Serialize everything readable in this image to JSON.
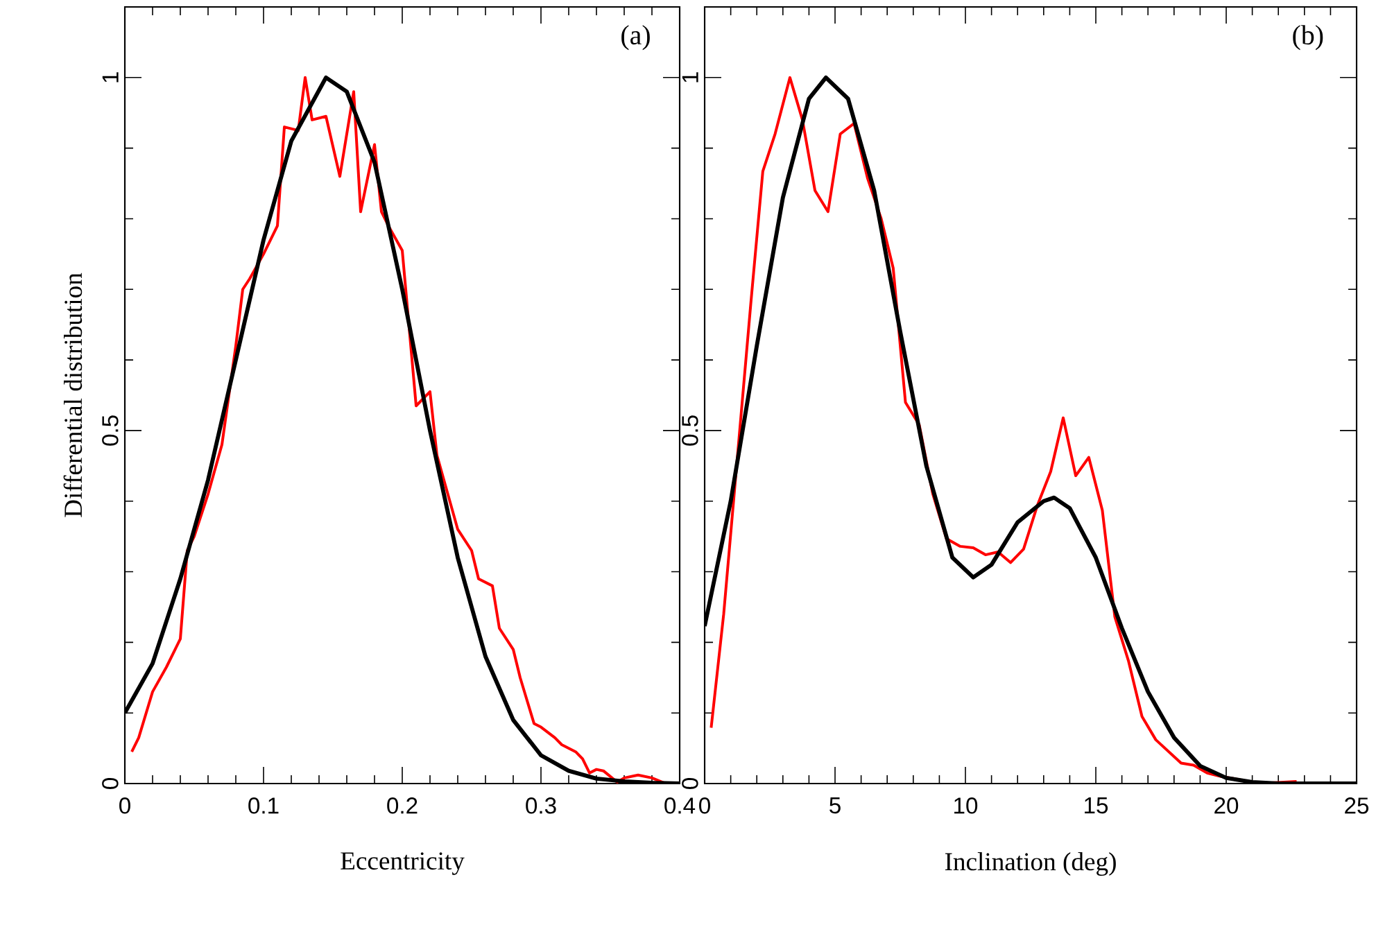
{
  "chart_data": [
    {
      "type": "line",
      "xlabel": "Eccentricity",
      "ylabel": "Differential  distribution",
      "annotations": [
        "(a)"
      ],
      "xlim": [
        0,
        0.4
      ],
      "ylim": [
        0,
        1.1
      ],
      "xticks": [
        0,
        {
          "value": 0.02,
          "label": null
        },
        {
          "value": 0.04,
          "label": null
        },
        {
          "value": 0.06,
          "label": null
        },
        {
          "value": 0.08,
          "label": null
        },
        0.1,
        {
          "value": 0.12,
          "label": null
        },
        {
          "value": 0.14,
          "label": null
        },
        {
          "value": 0.16,
          "label": null
        },
        {
          "value": 0.18,
          "label": null
        },
        0.2,
        {
          "value": 0.22,
          "label": null
        },
        {
          "value": 0.24,
          "label": null
        },
        {
          "value": 0.26,
          "label": null
        },
        {
          "value": 0.28,
          "label": null
        },
        0.3,
        {
          "value": 0.32,
          "label": null
        },
        {
          "value": 0.34,
          "label": null
        },
        {
          "value": 0.36,
          "label": null
        },
        {
          "value": 0.38,
          "label": null
        },
        0.4
      ],
      "yticks": [
        0,
        {
          "value": 0.1,
          "label": null
        },
        {
          "value": 0.2,
          "label": null
        },
        {
          "value": 0.3,
          "label": null
        },
        {
          "value": 0.4,
          "label": null
        },
        0.5,
        {
          "value": 0.6,
          "label": null
        },
        {
          "value": 0.7,
          "label": null
        },
        {
          "value": 0.8,
          "label": null
        },
        {
          "value": 0.9,
          "label": null
        },
        1
      ],
      "series": [
        {
          "color": "#ff0000",
          "x": [
            0.005,
            0.01,
            0.02,
            0.03,
            0.04,
            0.045,
            0.05,
            0.06,
            0.07,
            0.08,
            0.085,
            0.09,
            0.1,
            0.11,
            0.115,
            0.125,
            0.13,
            0.135,
            0.145,
            0.155,
            0.165,
            0.17,
            0.18,
            0.185,
            0.19,
            0.2,
            0.21,
            0.22,
            0.225,
            0.23,
            0.24,
            0.25,
            0.255,
            0.265,
            0.27,
            0.28,
            0.285,
            0.295,
            0.3,
            0.31,
            0.315,
            0.325,
            0.33,
            0.335,
            0.34,
            0.345,
            0.355,
            0.36,
            0.37,
            0.38,
            0.39
          ],
          "values": [
            0.045,
            0.065,
            0.13,
            0.165,
            0.205,
            0.33,
            0.35,
            0.41,
            0.48,
            0.62,
            0.7,
            0.715,
            0.75,
            0.79,
            0.93,
            0.925,
            1.0,
            0.94,
            0.945,
            0.86,
            0.98,
            0.81,
            0.905,
            0.81,
            0.79,
            0.755,
            0.535,
            0.555,
            0.465,
            0.43,
            0.36,
            0.33,
            0.29,
            0.28,
            0.22,
            0.19,
            0.15,
            0.085,
            0.08,
            0.065,
            0.055,
            0.045,
            0.035,
            0.015,
            0.02,
            0.018,
            0.002,
            0.008,
            0.012,
            0.008,
            0.0
          ]
        },
        {
          "color": "#000000",
          "x": [
            0,
            0.02,
            0.04,
            0.06,
            0.08,
            0.1,
            0.12,
            0.145,
            0.16,
            0.18,
            0.2,
            0.22,
            0.24,
            0.26,
            0.28,
            0.3,
            0.32,
            0.34,
            0.36,
            0.38,
            0.4
          ],
          "values": [
            0.1,
            0.17,
            0.29,
            0.43,
            0.6,
            0.77,
            0.91,
            1.0,
            0.98,
            0.88,
            0.7,
            0.5,
            0.32,
            0.18,
            0.09,
            0.04,
            0.018,
            0.007,
            0.003,
            0.001,
            0.0
          ]
        }
      ]
    },
    {
      "type": "line",
      "xlabel": "Inclination  (deg)",
      "annotations": [
        "(b)"
      ],
      "xlim": [
        0,
        25
      ],
      "ylim": [
        0,
        1.1
      ],
      "xticks": [
        0,
        {
          "value": 1,
          "label": null
        },
        {
          "value": 2,
          "label": null
        },
        {
          "value": 3,
          "label": null
        },
        {
          "value": 4,
          "label": null
        },
        5,
        {
          "value": 6,
          "label": null
        },
        {
          "value": 7,
          "label": null
        },
        {
          "value": 8,
          "label": null
        },
        {
          "value": 9,
          "label": null
        },
        10,
        {
          "value": 11,
          "label": null
        },
        {
          "value": 12,
          "label": null
        },
        {
          "value": 13,
          "label": null
        },
        {
          "value": 14,
          "label": null
        },
        15,
        {
          "value": 16,
          "label": null
        },
        {
          "value": 17,
          "label": null
        },
        {
          "value": 18,
          "label": null
        },
        {
          "value": 19,
          "label": null
        },
        20,
        {
          "value": 21,
          "label": null
        },
        {
          "value": 22,
          "label": null
        },
        {
          "value": 23,
          "label": null
        },
        {
          "value": 24,
          "label": null
        },
        25
      ],
      "yticks": [
        0,
        {
          "value": 0.1,
          "label": null
        },
        {
          "value": 0.2,
          "label": null
        },
        {
          "value": 0.3,
          "label": null
        },
        {
          "value": 0.4,
          "label": null
        },
        0.5,
        {
          "value": 0.6,
          "label": null
        },
        {
          "value": 0.7,
          "label": null
        },
        {
          "value": 0.8,
          "label": null
        },
        {
          "value": 0.9,
          "label": null
        },
        1
      ],
      "series": [
        {
          "color": "#ff0000",
          "x": [
            0.25,
            0.73,
            1.25,
            1.77,
            2.23,
            2.7,
            3.27,
            3.75,
            4.23,
            4.73,
            5.2,
            5.73,
            6.25,
            6.77,
            7.23,
            7.7,
            8.23,
            8.75,
            9.27,
            9.8,
            10.3,
            10.77,
            11.25,
            11.73,
            12.23,
            12.75,
            13.27,
            13.75,
            14.23,
            14.73,
            15.25,
            15.73,
            16.25,
            16.77,
            17.3,
            18.27,
            18.75,
            19.27,
            19.8,
            20.3,
            21.25,
            22.7
          ],
          "values": [
            0.079,
            0.24,
            0.46,
            0.68,
            0.867,
            0.92,
            1.0,
            0.94,
            0.84,
            0.81,
            0.92,
            0.935,
            0.857,
            0.8,
            0.73,
            0.54,
            0.508,
            0.41,
            0.347,
            0.336,
            0.334,
            0.324,
            0.328,
            0.313,
            0.332,
            0.393,
            0.442,
            0.518,
            0.436,
            0.462,
            0.387,
            0.236,
            0.174,
            0.095,
            0.062,
            0.029,
            0.026,
            0.015,
            0.01,
            0.007,
            0.0,
            0.003
          ]
        },
        {
          "color": "#000000",
          "x": [
            0,
            1,
            2,
            3,
            4,
            4.65,
            5.5,
            6.5,
            7.5,
            8.5,
            9.5,
            10.3,
            11,
            12,
            13,
            13.4,
            14,
            15,
            16,
            17,
            18,
            19,
            20,
            21,
            22,
            25
          ],
          "values": [
            0.223,
            0.4,
            0.62,
            0.83,
            0.97,
            1.0,
            0.97,
            0.84,
            0.64,
            0.45,
            0.32,
            0.292,
            0.31,
            0.37,
            0.4,
            0.405,
            0.39,
            0.32,
            0.22,
            0.13,
            0.065,
            0.025,
            0.008,
            0.002,
            0.0,
            0.0
          ]
        }
      ]
    }
  ]
}
